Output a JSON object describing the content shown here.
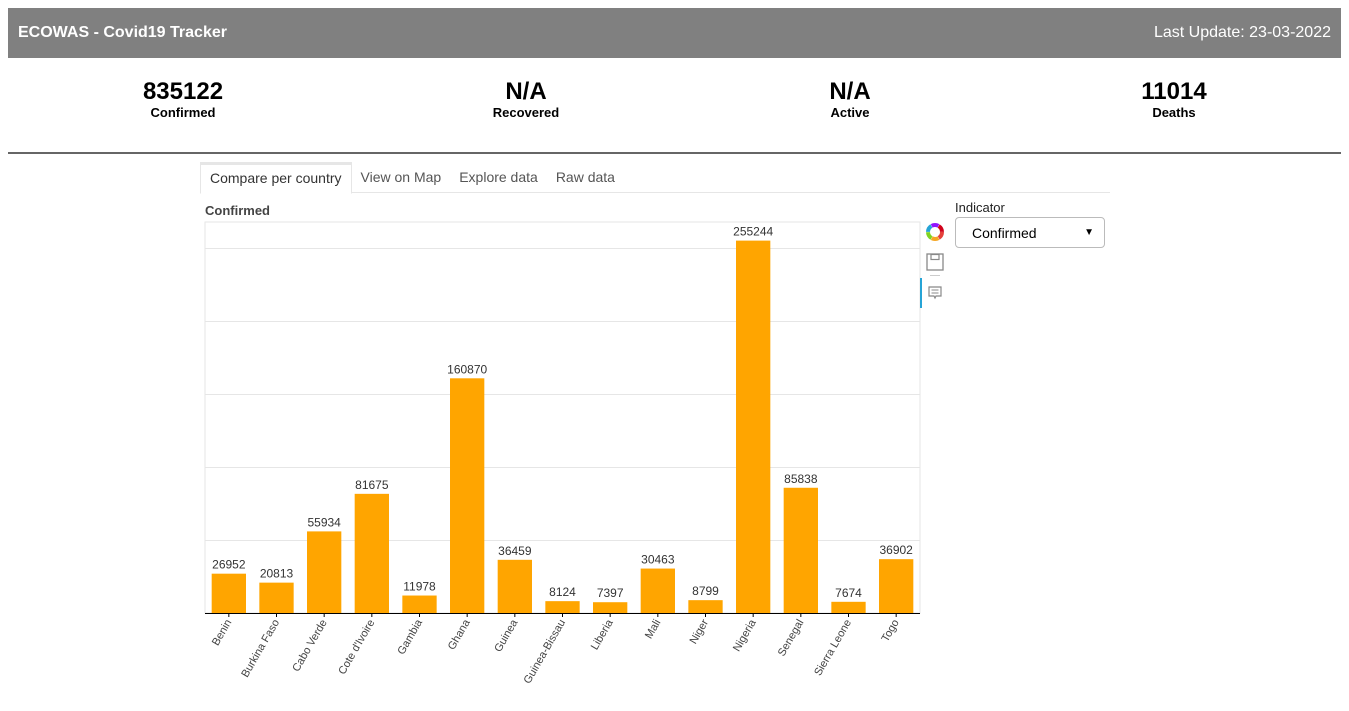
{
  "header": {
    "title": "ECOWAS - Covid19 Tracker",
    "last_update": "Last Update: 23-03-2022"
  },
  "stats": [
    {
      "value": "835122",
      "label": "Confirmed"
    },
    {
      "value": "N/A",
      "label": "Recovered"
    },
    {
      "value": "N/A",
      "label": "Active"
    },
    {
      "value": "11014",
      "label": "Deaths"
    }
  ],
  "tabs": [
    "Compare per country",
    "View on Map",
    "Explore data",
    "Raw data"
  ],
  "indicator": {
    "label": "Indicator",
    "selected": "Confirmed"
  },
  "colors": {
    "bar": "#FFA500",
    "header_bg": "#808080",
    "tool_accent": "#26a4d6"
  },
  "toolbar_icons": [
    "bokeh-logo-icon",
    "save-icon",
    "hover-tool-icon"
  ],
  "chart_data": {
    "type": "bar",
    "title": "Confirmed",
    "categories": [
      "Benin",
      "Burkina Faso",
      "Cabo Verde",
      "Cote d'Ivoire",
      "Gambia",
      "Ghana",
      "Guinea",
      "Guinea-Bissau",
      "Liberia",
      "Mali",
      "Niger",
      "Nigeria",
      "Senegal",
      "Sierra Leone",
      "Togo"
    ],
    "values": [
      26952,
      20813,
      55934,
      81675,
      11978,
      160870,
      36459,
      8124,
      7397,
      30463,
      8799,
      255244,
      85838,
      7674,
      36902
    ],
    "ylim": [
      0,
      268000
    ],
    "xlabel": "",
    "ylabel": "",
    "grid": true
  }
}
